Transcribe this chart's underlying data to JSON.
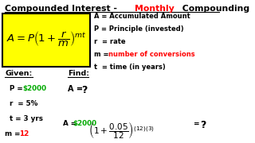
{
  "bg_color": "#ffffff",
  "box_color": "#ffff00",
  "box_edge": "#000000",
  "legend_lines": [
    [
      "A = Accumulated Amount",
      "black"
    ],
    [
      "P = Principle (invested)",
      "black"
    ],
    [
      "r  = rate",
      "black"
    ],
    [
      "m = ",
      "black",
      "number of conversions",
      "red"
    ],
    [
      "t  = time (in years)",
      "black"
    ]
  ]
}
